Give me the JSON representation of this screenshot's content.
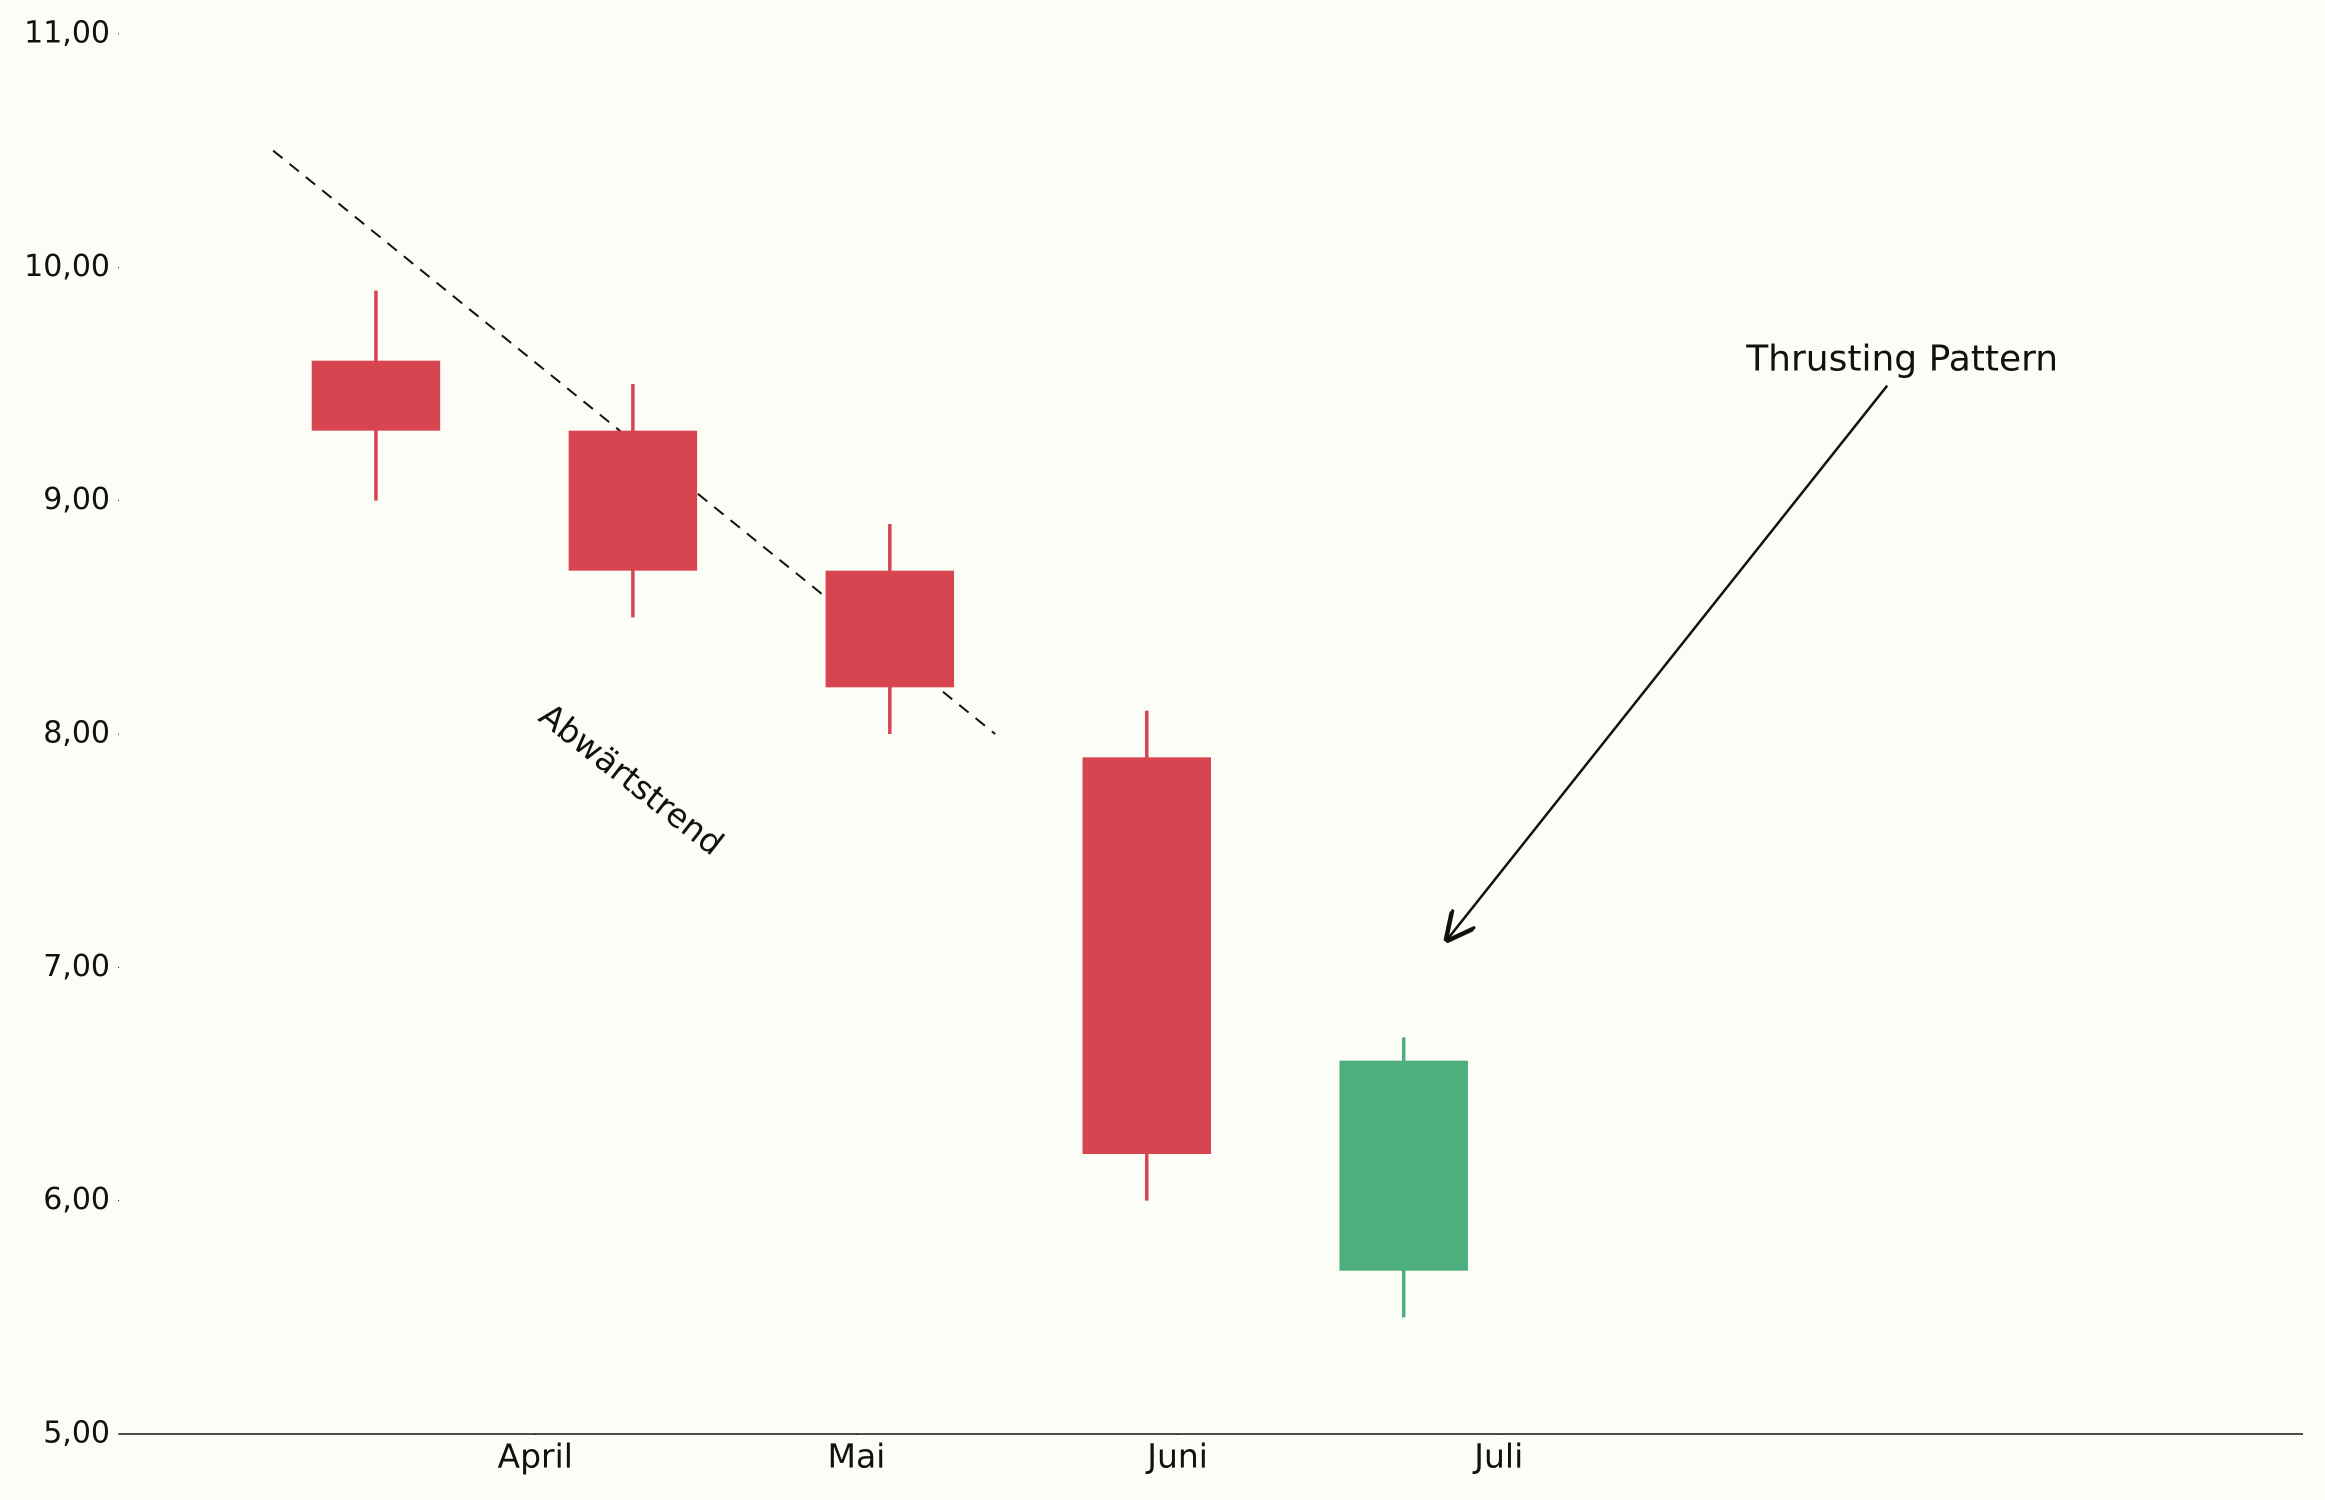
{
  "chart_data": {
    "type": "candlestick",
    "x": [
      1,
      2,
      3,
      4,
      5
    ],
    "open": [
      9.6,
      9.3,
      8.7,
      7.9,
      5.7
    ],
    "high": [
      9.9,
      9.5,
      8.9,
      8.1,
      6.7
    ],
    "low": [
      9.0,
      8.5,
      8.0,
      6.0,
      5.5
    ],
    "close": [
      9.3,
      8.7,
      8.2,
      6.2,
      6.6
    ],
    "up_color": "#4caf7d",
    "down_color": "#d64550",
    "xlim": [
      0,
      8.5
    ],
    "xticks": [
      {
        "value": 1.62,
        "label": "April"
      },
      {
        "value": 2.87,
        "label": "Mai"
      },
      {
        "value": 4.12,
        "label": "Juni"
      },
      {
        "value": 5.37,
        "label": "Juli"
      }
    ],
    "ylim": [
      5,
      11
    ],
    "yticks": [
      {
        "value": 5,
        "label": "5,00"
      },
      {
        "value": 6,
        "label": "6,00"
      },
      {
        "value": 7,
        "label": "7,00"
      },
      {
        "value": 8,
        "label": "8,00"
      },
      {
        "value": 9,
        "label": "9,00"
      },
      {
        "value": 10,
        "label": "10,00"
      },
      {
        "value": 11,
        "label": "11,00"
      }
    ],
    "trendline": {
      "x": [
        0.6,
        3.41
      ],
      "y": [
        10.5,
        8.0
      ]
    },
    "annotations": [
      {
        "text": "Abwärtstrend",
        "x": 1.99,
        "y": 7.8
      },
      {
        "text": "Thrusting Pattern",
        "x": 6.94,
        "y": 9.6,
        "arrow_x": 5.17,
        "arrow_y": 7.12
      }
    ]
  }
}
